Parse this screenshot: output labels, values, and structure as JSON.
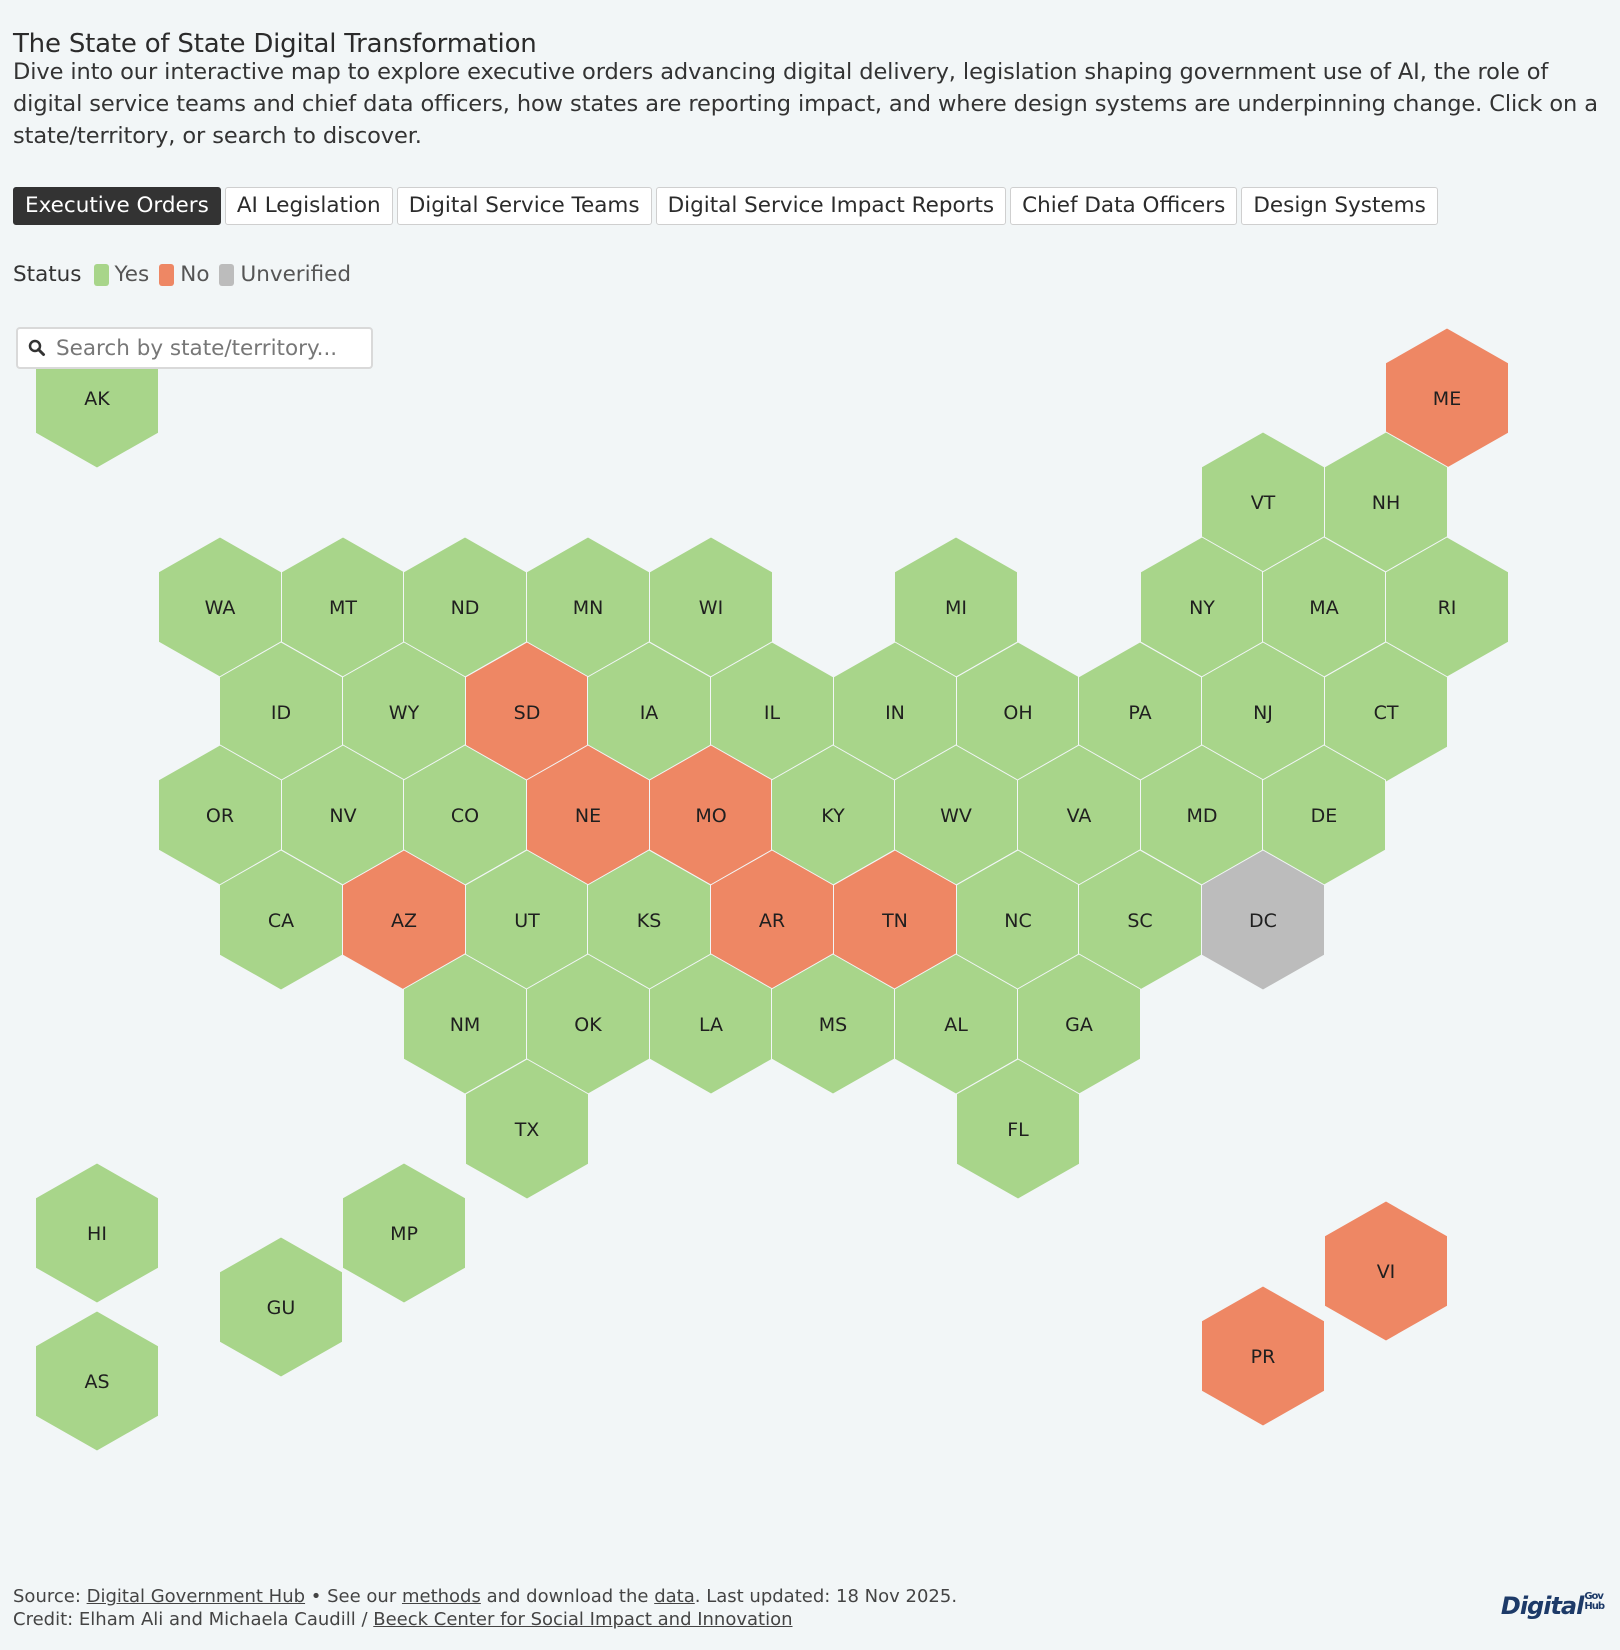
{
  "header": {
    "title": "The State of State Digital Transformation",
    "description": "Dive into our interactive map to explore executive orders advancing digital delivery, legislation shaping government use of AI, the role of digital service teams and chief data officers, how states are reporting impact, and where design systems are underpinning change. Click on a state/territory, or search to discover."
  },
  "tabs": [
    {
      "label": "Executive Orders",
      "active": true
    },
    {
      "label": "AI Legislation",
      "active": false
    },
    {
      "label": "Digital Service Teams",
      "active": false
    },
    {
      "label": "Digital Service Impact Reports",
      "active": false
    },
    {
      "label": "Chief Data Officers",
      "active": false
    },
    {
      "label": "Design Systems",
      "active": false
    }
  ],
  "legend": {
    "label": "Status",
    "items": [
      {
        "label": "Yes",
        "color": "#a8d58a"
      },
      {
        "label": "No",
        "color": "#ee8764"
      },
      {
        "label": "Unverified",
        "color": "#bcbcbc"
      }
    ]
  },
  "search": {
    "placeholder": "Search by state/territory...",
    "icon": "search-icon"
  },
  "map": {
    "status_colors": {
      "Yes": "#a8d58a",
      "No": "#ee8764",
      "Unverified": "#bcbcbc"
    },
    "states": [
      {
        "code": "AK",
        "status": "Yes"
      },
      {
        "code": "ME",
        "status": "No"
      },
      {
        "code": "VT",
        "status": "Yes"
      },
      {
        "code": "NH",
        "status": "Yes"
      },
      {
        "code": "WA",
        "status": "Yes"
      },
      {
        "code": "MT",
        "status": "Yes"
      },
      {
        "code": "ND",
        "status": "Yes"
      },
      {
        "code": "MN",
        "status": "Yes"
      },
      {
        "code": "WI",
        "status": "Yes"
      },
      {
        "code": "MI",
        "status": "Yes"
      },
      {
        "code": "NY",
        "status": "Yes"
      },
      {
        "code": "MA",
        "status": "Yes"
      },
      {
        "code": "RI",
        "status": "Yes"
      },
      {
        "code": "ID",
        "status": "Yes"
      },
      {
        "code": "WY",
        "status": "Yes"
      },
      {
        "code": "SD",
        "status": "No"
      },
      {
        "code": "IA",
        "status": "Yes"
      },
      {
        "code": "IL",
        "status": "Yes"
      },
      {
        "code": "IN",
        "status": "Yes"
      },
      {
        "code": "OH",
        "status": "Yes"
      },
      {
        "code": "PA",
        "status": "Yes"
      },
      {
        "code": "NJ",
        "status": "Yes"
      },
      {
        "code": "CT",
        "status": "Yes"
      },
      {
        "code": "OR",
        "status": "Yes"
      },
      {
        "code": "NV",
        "status": "Yes"
      },
      {
        "code": "CO",
        "status": "Yes"
      },
      {
        "code": "NE",
        "status": "No"
      },
      {
        "code": "MO",
        "status": "No"
      },
      {
        "code": "KY",
        "status": "Yes"
      },
      {
        "code": "WV",
        "status": "Yes"
      },
      {
        "code": "VA",
        "status": "Yes"
      },
      {
        "code": "MD",
        "status": "Yes"
      },
      {
        "code": "DE",
        "status": "Yes"
      },
      {
        "code": "CA",
        "status": "Yes"
      },
      {
        "code": "AZ",
        "status": "No"
      },
      {
        "code": "UT",
        "status": "Yes"
      },
      {
        "code": "KS",
        "status": "Yes"
      },
      {
        "code": "AR",
        "status": "No"
      },
      {
        "code": "TN",
        "status": "No"
      },
      {
        "code": "NC",
        "status": "Yes"
      },
      {
        "code": "SC",
        "status": "Yes"
      },
      {
        "code": "DC",
        "status": "Unverified"
      },
      {
        "code": "NM",
        "status": "Yes"
      },
      {
        "code": "OK",
        "status": "Yes"
      },
      {
        "code": "LA",
        "status": "Yes"
      },
      {
        "code": "MS",
        "status": "Yes"
      },
      {
        "code": "AL",
        "status": "Yes"
      },
      {
        "code": "GA",
        "status": "Yes"
      },
      {
        "code": "TX",
        "status": "Yes"
      },
      {
        "code": "FL",
        "status": "Yes"
      },
      {
        "code": "HI",
        "status": "Yes"
      },
      {
        "code": "MP",
        "status": "Yes"
      },
      {
        "code": "GU",
        "status": "Yes"
      },
      {
        "code": "AS",
        "status": "Yes"
      },
      {
        "code": "VI",
        "status": "No"
      },
      {
        "code": "PR",
        "status": "No"
      }
    ]
  },
  "footer": {
    "source_prefix": "Source: ",
    "source_link": "Digital Government Hub",
    "sep1": " • See our ",
    "methods_link": "methods",
    "mid": " and download the ",
    "data_link": "data",
    "updated": ". Last updated: 18 Nov 2025.",
    "credit_prefix": "Credit: Elham Ali and Michaela Caudill / ",
    "credit_link": "Beeck Center for Social Impact and Innovation"
  },
  "logo": {
    "main": "Digital",
    "sub_top": "Gov",
    "sub_bottom": "Hub"
  }
}
